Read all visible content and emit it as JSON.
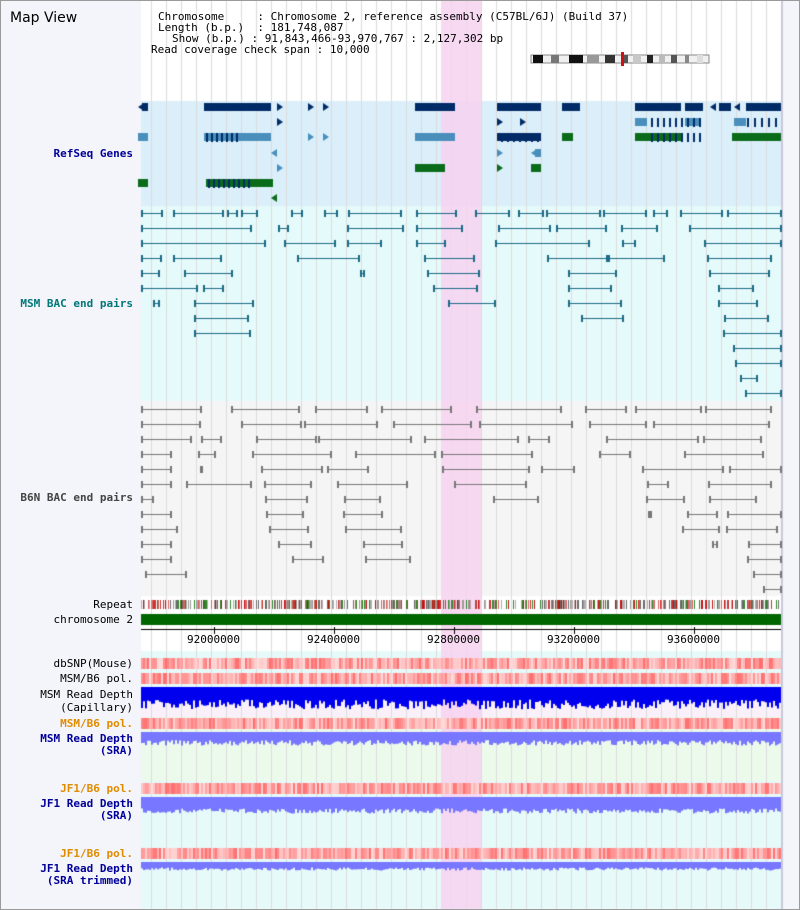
{
  "view_title": "Map View",
  "header": {
    "chromosome_label": "Chromosome",
    "chromosome_value": "Chromosome 2, reference assembly (C57BL/6J) (Build 37)",
    "length_label": "Length (b.p.)",
    "length_value": "181,748,087",
    "show_label": "Show (b.p.)",
    "show_value": "91,843,466-93,970,767 : 2,127,302 bp",
    "coverage_label": "Read coverage check span",
    "coverage_value": "10,000"
  },
  "tracks": {
    "refseq": "RefSeq Genes",
    "msm_bac": "MSM BAC end pairs",
    "b6n_bac": "B6N BAC end pairs",
    "repeat": "Repeat",
    "chromosome": "chromosome 2",
    "dbsnp": "dbSNP(Mouse)",
    "msm_b6_pol_1": "MSM/B6 pol.",
    "msm_read_depth_cap_1": "MSM Read Depth",
    "msm_read_depth_cap_2": "(Capillary)",
    "msm_b6_pol_2": "MSM/B6 pol.",
    "msm_read_depth_sra_1": "MSM Read Depth",
    "msm_read_depth_sra_2": "(SRA)",
    "jf1_b6_pol_1": "JF1/B6 pol.",
    "jf1_read_depth_sra_1": "JF1 Read Depth",
    "jf1_read_depth_sra_2": "(SRA)",
    "jf1_b6_pol_2": "JF1/B6 pol.",
    "jf1_read_depth_trim_1": "JF1 Read Depth",
    "jf1_read_depth_trim_2": "(SRA trimmed)"
  },
  "axis": {
    "ticks": [
      "92000000",
      "92400000",
      "92800000",
      "93200000",
      "93600000"
    ]
  },
  "colors": {
    "highlight": "#f7d2f0",
    "refseq_bg": "#dbeffb",
    "msm_bg": "#e5fafa",
    "b6n_bg": "#f5f5f5",
    "gene_navy": "#002b66",
    "gene_blue": "#4a8fbc",
    "gene_green": "#0a6b1a",
    "msm_line": "#1b6a86",
    "b6n_line": "#777777",
    "chromosome_bar": "#006600",
    "depth_blue": "#0000ee",
    "depth_lavender": "#7777ff"
  }
}
